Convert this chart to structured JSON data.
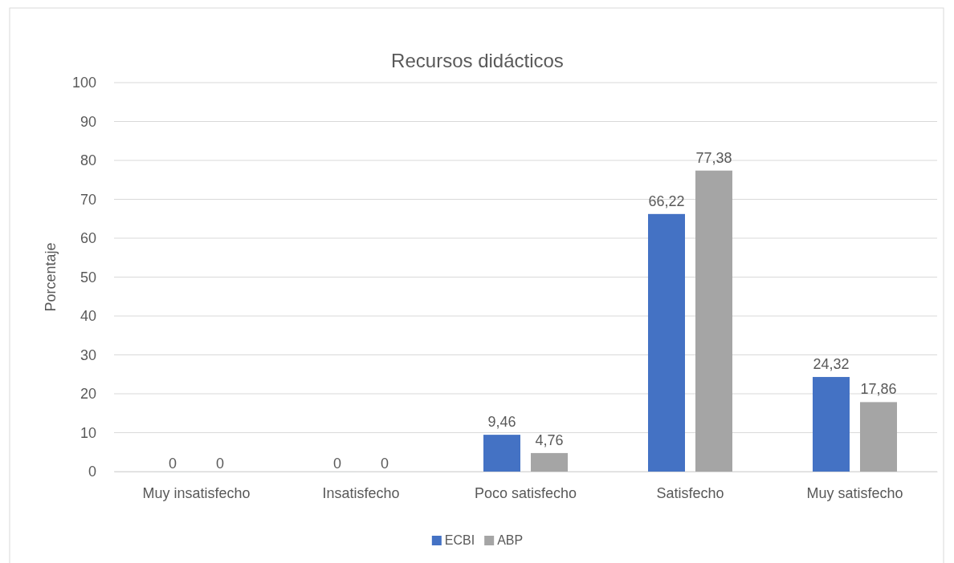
{
  "chart_data": {
    "type": "bar",
    "title": "Recursos didácticos",
    "ylabel": "Porcentaje",
    "categories": [
      "Muy insatisfecho",
      "Insatisfecho",
      "Poco satisfecho",
      "Satisfecho",
      "Muy satisfecho"
    ],
    "series": [
      {
        "name": "ECBI",
        "color": "#4472c4",
        "values": [
          0,
          0,
          9.46,
          66.22,
          24.32
        ],
        "value_labels": [
          "0",
          "0",
          "9,46",
          "66,22",
          "24,32"
        ]
      },
      {
        "name": "ABP",
        "color": "#a5a5a5",
        "values": [
          0,
          0,
          4.76,
          77.38,
          17.86
        ],
        "value_labels": [
          "0",
          "0",
          "4,76",
          "77,38",
          "17,86"
        ]
      }
    ],
    "ylim": [
      0,
      100
    ],
    "yticks": [
      0,
      10,
      20,
      30,
      40,
      50,
      60,
      70,
      80,
      90,
      100
    ],
    "grid": "y",
    "legend": "bottom"
  }
}
